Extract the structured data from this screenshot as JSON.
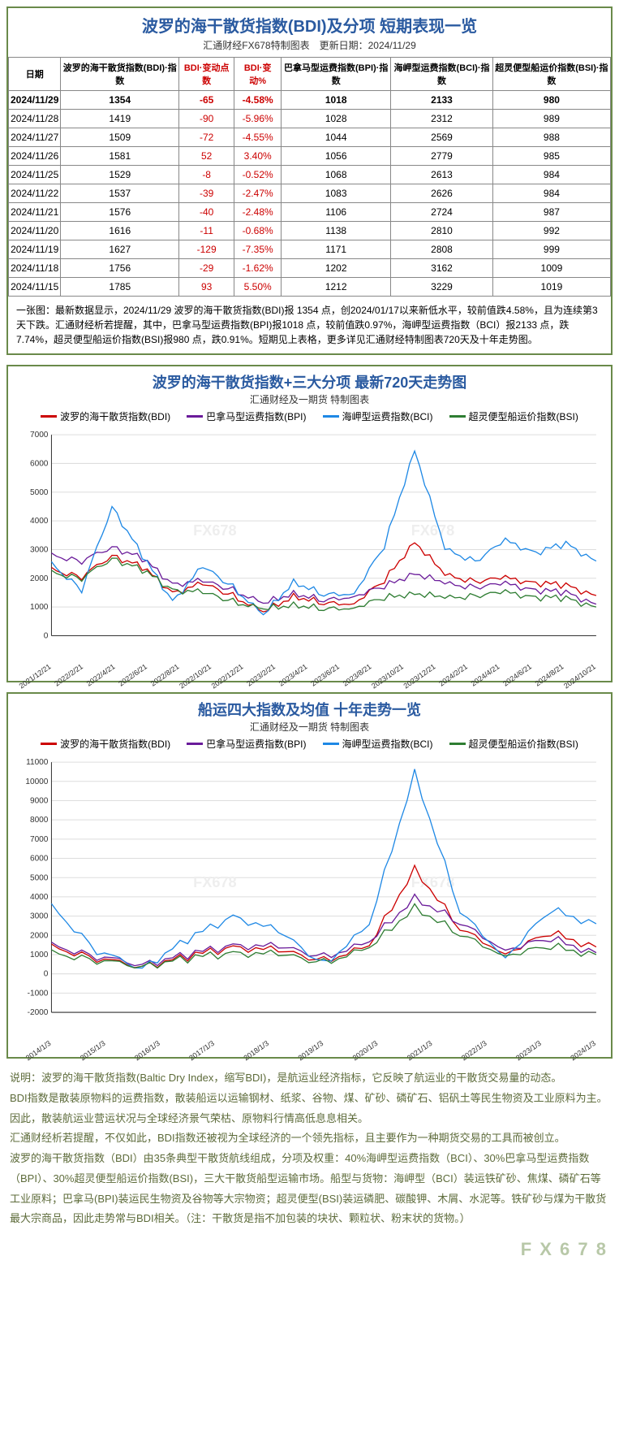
{
  "tablePanel": {
    "title": "波罗的海干散货指数(BDI)及分项 短期表现一览",
    "subtitle": "汇通财经FX678特制图表　更新日期：2024/11/29",
    "columns": [
      "日期",
      "波罗的海干散货指数(BDI)·指数",
      "BDI·变动点数",
      "BDI·变动%",
      "巴拿马型运费指数(BPI)·指数",
      "海岬型运费指数(BCI)·指数",
      "超灵便型船运价指数(BSI)·指数"
    ],
    "col_red_idx": [
      2,
      3
    ],
    "highlight_row": 0,
    "rows": [
      [
        "2024/11/29",
        "1354",
        "-65",
        "-4.58%",
        "1018",
        "2133",
        "980"
      ],
      [
        "2024/11/28",
        "1419",
        "-90",
        "-5.96%",
        "1028",
        "2312",
        "989"
      ],
      [
        "2024/11/27",
        "1509",
        "-72",
        "-4.55%",
        "1044",
        "2569",
        "988"
      ],
      [
        "2024/11/26",
        "1581",
        "52",
        "3.40%",
        "1056",
        "2779",
        "985"
      ],
      [
        "2024/11/25",
        "1529",
        "-8",
        "-0.52%",
        "1068",
        "2613",
        "984"
      ],
      [
        "2024/11/22",
        "1537",
        "-39",
        "-2.47%",
        "1083",
        "2626",
        "984"
      ],
      [
        "2024/11/21",
        "1576",
        "-40",
        "-2.48%",
        "1106",
        "2724",
        "987"
      ],
      [
        "2024/11/20",
        "1616",
        "-11",
        "-0.68%",
        "1138",
        "2810",
        "992"
      ],
      [
        "2024/11/19",
        "1627",
        "-129",
        "-7.35%",
        "1171",
        "2808",
        "999"
      ],
      [
        "2024/11/18",
        "1756",
        "-29",
        "-1.62%",
        "1202",
        "3162",
        "1009"
      ],
      [
        "2024/11/15",
        "1785",
        "93",
        "5.50%",
        "1212",
        "3229",
        "1019"
      ]
    ],
    "note": "一张图：最新数据显示，2024/11/29 波罗的海干散货指数(BDI)报 1354 点，创2024/01/17以来新低水平，较前值跌4.58%，且为连续第3天下跌。汇通财经析若提醒，其中，巴拿马型运费指数(BPI)报1018 点，较前值跌0.97%，海岬型运费指数（BCI）报2133 点，跌7.74%，超灵便型船运价指数(BSI)报980 点，跌0.91%。短期见上表格，更多详见汇通财经特制图表720天及十年走势图。"
  },
  "chart720": {
    "title": "波罗的海干散货指数+三大分项 最新720天走势图",
    "subtitle": "汇通财经及一期货 特制图表",
    "legend": [
      {
        "label": "波罗的海干散货指数(BDI)",
        "color": "#cc0000"
      },
      {
        "label": "巴拿马型运费指数(BPI)",
        "color": "#6a1b9a"
      },
      {
        "label": "海岬型运费指数(BCI)",
        "color": "#1e88e5"
      },
      {
        "label": "超灵便型船运价指数(BSI)",
        "color": "#2e7d32"
      }
    ],
    "ylim": [
      0,
      7000
    ],
    "ytick_step": 1000,
    "grid_color": "#dddddd",
    "background_color": "#ffffff",
    "x_labels": [
      "2021/12/21",
      "2022/2/21",
      "2022/4/21",
      "2022/6/21",
      "2022/8/21",
      "2022/10/21",
      "2022/12/21",
      "2023/2/21",
      "2023/4/21",
      "2023/6/21",
      "2023/8/21",
      "2023/10/21",
      "2023/12/21",
      "2024/2/21",
      "2024/4/21",
      "2024/6/21",
      "2024/8/21",
      "2024/10/21"
    ],
    "series": {
      "BDI": [
        2300,
        2050,
        2800,
        2400,
        1500,
        1800,
        1400,
        800,
        1400,
        1100,
        1150,
        1900,
        3300,
        2100,
        1900,
        2000,
        1850,
        1750,
        1400
      ],
      "BPI": [
        2800,
        2600,
        3100,
        2700,
        1800,
        1900,
        1600,
        1100,
        1500,
        1200,
        1400,
        1700,
        2200,
        1800,
        1700,
        1800,
        1600,
        1500,
        1100
      ],
      "BCI": [
        2500,
        1600,
        4500,
        2800,
        1200,
        2400,
        1700,
        700,
        1900,
        1400,
        1500,
        3100,
        6500,
        3000,
        2600,
        3300,
        2900,
        3200,
        2600
      ],
      "BSI": [
        2200,
        2000,
        2700,
        2300,
        1600,
        1500,
        1200,
        900,
        1100,
        900,
        1000,
        1300,
        1500,
        1300,
        1400,
        1500,
        1350,
        1300,
        1000
      ]
    }
  },
  "chart10y": {
    "title": "船运四大指数及均值 十年走势一览",
    "subtitle": "汇通财经及一期货 特制图表",
    "legend": [
      {
        "label": "波罗的海干散货指数(BDI)",
        "color": "#cc0000"
      },
      {
        "label": "巴拿马型运费指数(BPI)",
        "color": "#6a1b9a"
      },
      {
        "label": "海岬型运费指数(BCI)",
        "color": "#1e88e5"
      },
      {
        "label": "超灵便型船运价指数(BSI)",
        "color": "#2e7d32"
      }
    ],
    "ylim": [
      -2000,
      11000
    ],
    "yticks": [
      -2000,
      -1000,
      0,
      1000,
      2000,
      3000,
      4000,
      5000,
      6000,
      7000,
      8000,
      9000,
      10000,
      11000
    ],
    "grid_color": "#dddddd",
    "background_color": "#ffffff",
    "x_labels": [
      "2014/1/3",
      "2015/1/3",
      "2016/1/3",
      "2017/1/3",
      "2018/1/3",
      "2019/1/3",
      "2020/1/3",
      "2021/1/3",
      "2022/1/3",
      "2023/1/3",
      "2024/1/3"
    ],
    "series": {
      "BDI": [
        1400,
        800,
        400,
        900,
        1400,
        1200,
        700,
        1400,
        5500,
        2300,
        1100,
        2100,
        1400
      ],
      "BPI": [
        1500,
        900,
        500,
        1000,
        1500,
        1400,
        900,
        1600,
        4000,
        2600,
        1300,
        1800,
        1100
      ],
      "BCI": [
        3500,
        1200,
        300,
        1800,
        3000,
        2200,
        500,
        2500,
        10500,
        3200,
        900,
        3300,
        2600
      ],
      "BSI": [
        1100,
        700,
        400,
        800,
        1100,
        1000,
        600,
        1300,
        3500,
        2000,
        1000,
        1400,
        1000
      ]
    }
  },
  "description": {
    "lines": [
      "说明：波罗的海干散货指数(Baltic Dry Index，缩写BDI)，是航运业经济指标，它反映了航运业的干散货交易量的动态。",
      "BDI指数是散装原物料的运费指数，散装船运以运输钢材、纸浆、谷物、煤、矿砂、磷矿石、铝矾土等民生物资及工业原料为主。",
      "因此，散装航运业营运状况与全球经济景气荣枯、原物料行情高低息息相关。",
      "汇通财经析若提醒，不仅如此，BDI指数还被视为全球经济的一个领先指标，且主要作为一种期货交易的工具而被创立。",
      "波罗的海干散货指数（BDI）由35条典型干散货航线组成，分项及权重：40%海岬型运费指数（BCI）、30%巴拿马型运费指数（BPI）、30%超灵便型船运价指数(BSI)，三大干散货船型运输市场。船型与货物：海岬型（BCI）装运铁矿砂、焦煤、磷矿石等工业原料；巴拿马(BPI)装运民生物资及谷物等大宗物资；超灵便型(BSI)装运磷肥、碳酸钾、木屑、水泥等。铁矿砂与煤为干散货最大宗商品，因此走势常与BDI相关。（注：干散货是指不加包装的块状、颗粒状、粉末状的货物。）"
    ]
  },
  "footer": "F X 6 7 8",
  "watermark": "FX678"
}
